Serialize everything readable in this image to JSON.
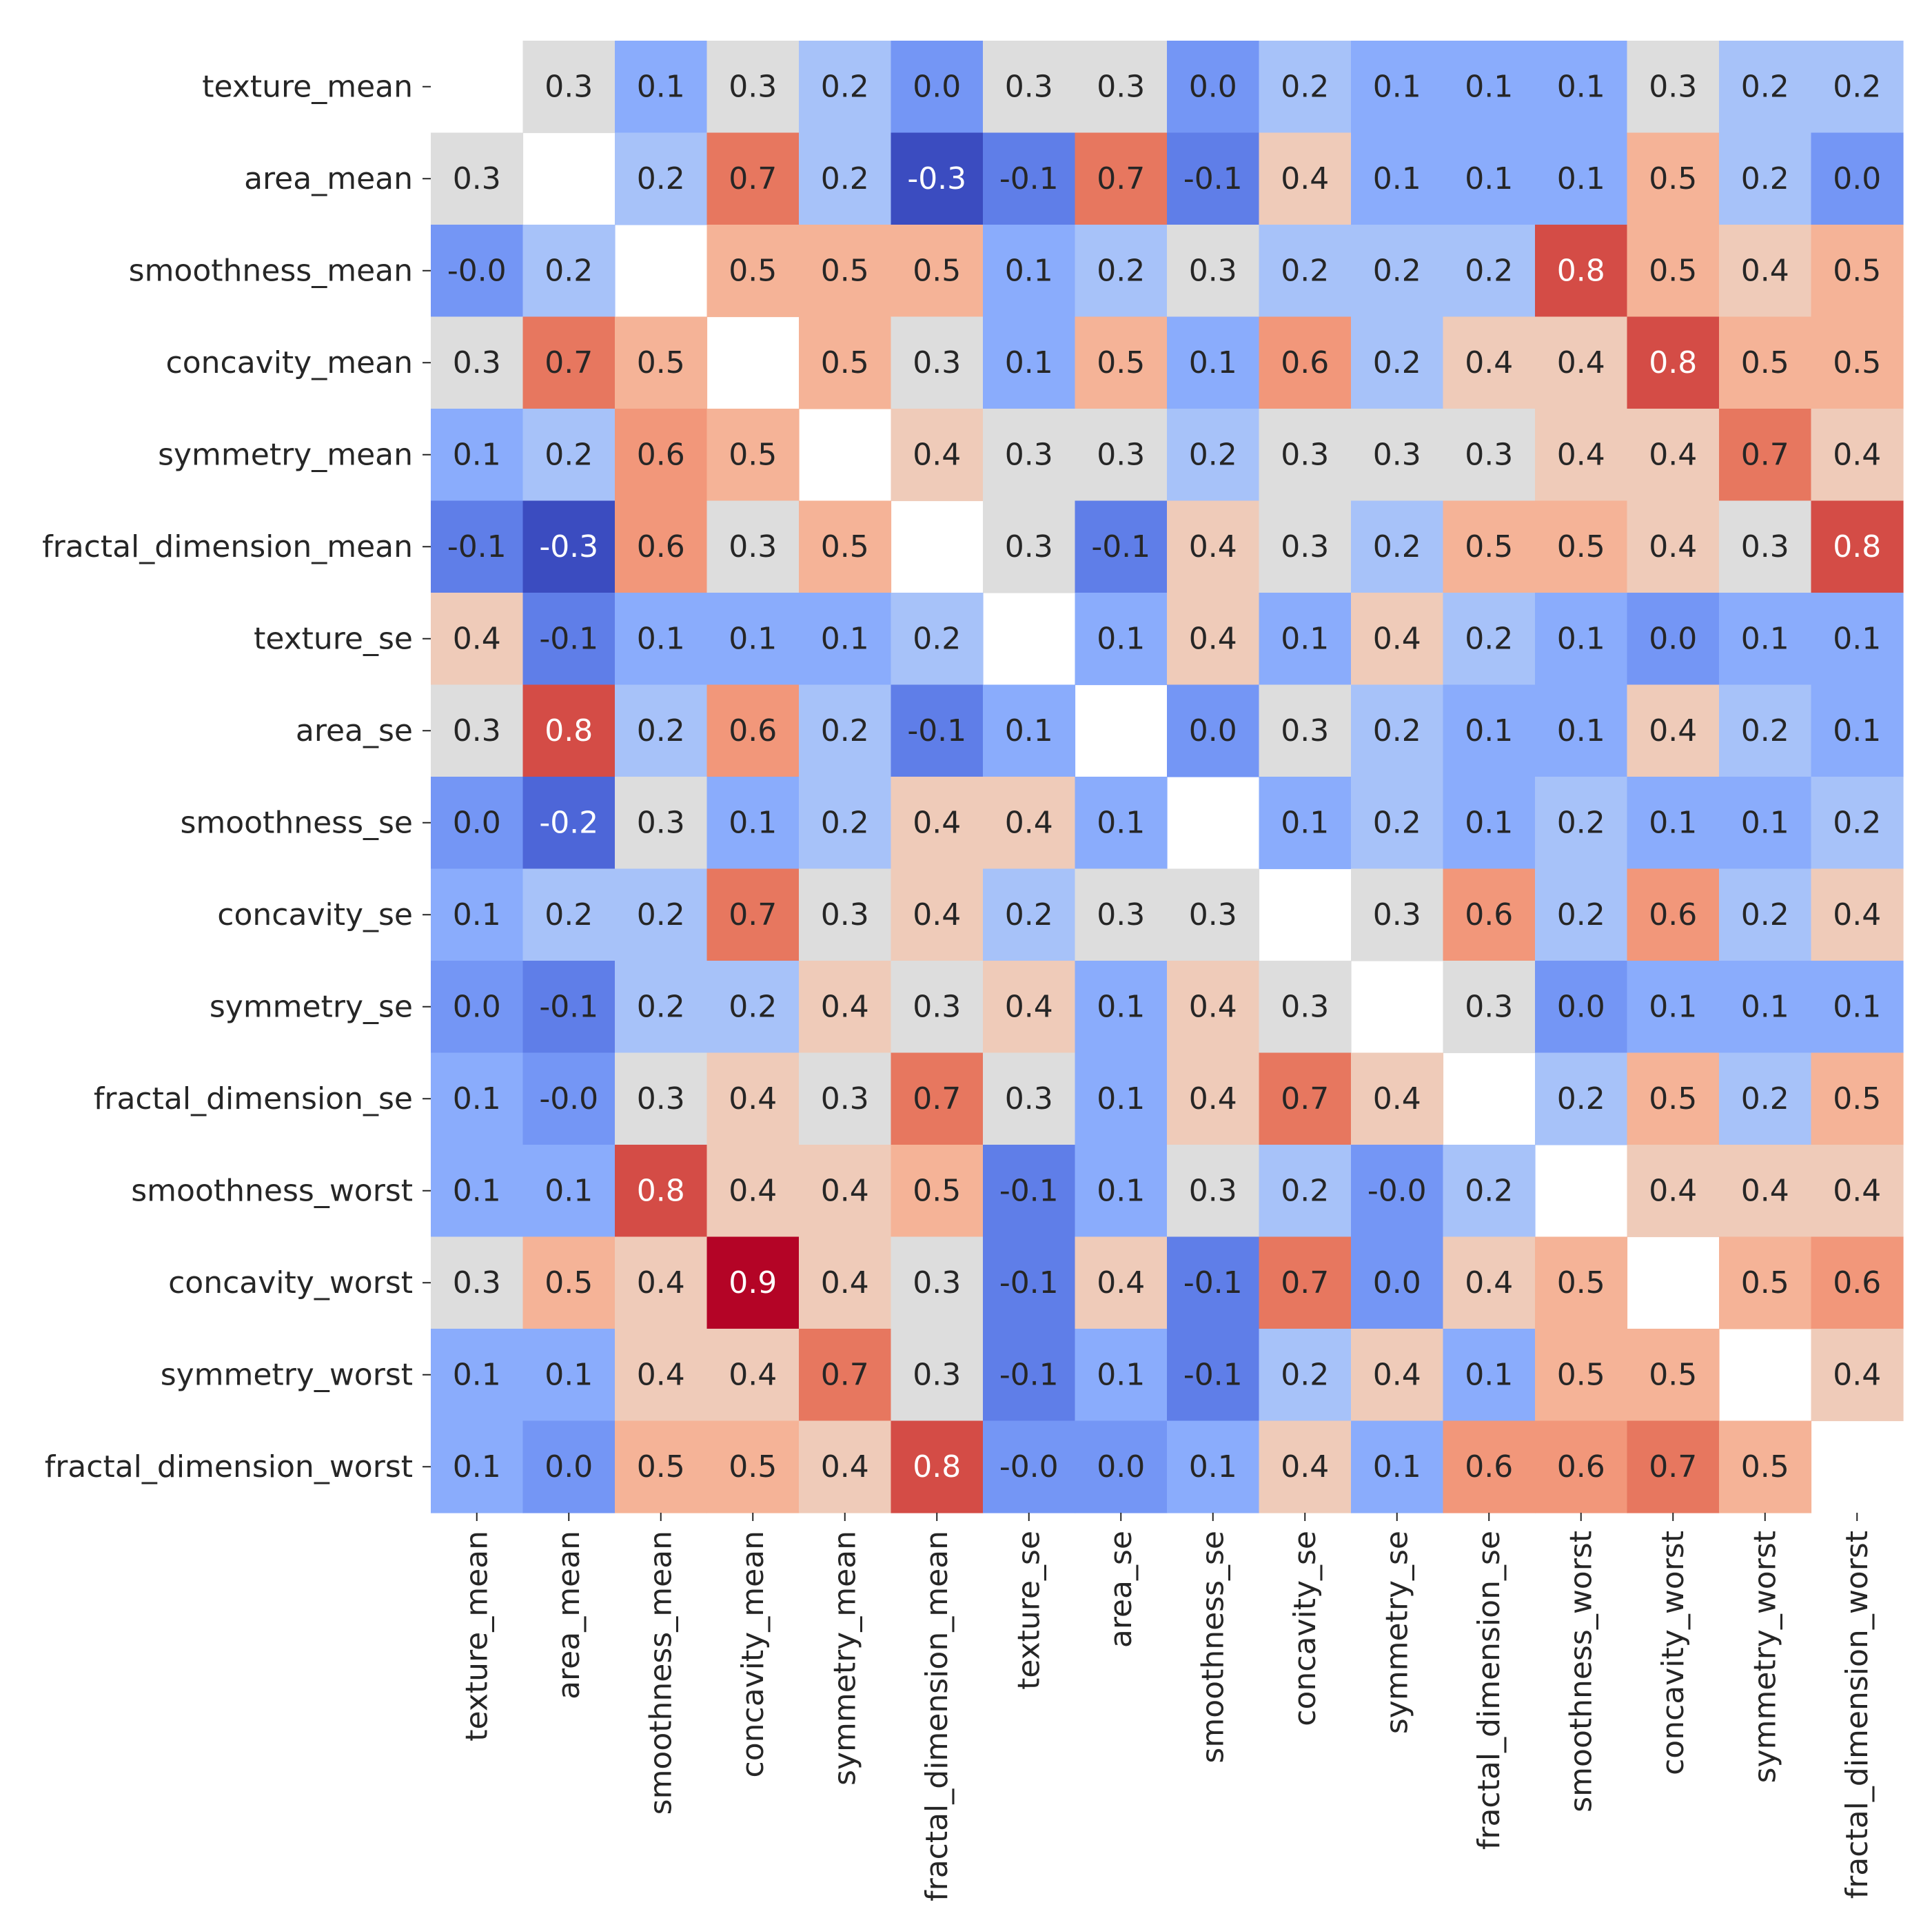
{
  "chart_data": {
    "type": "heatmap",
    "title": "",
    "xlabel": "",
    "ylabel": "",
    "colormap": "coolwarm",
    "vmin": -0.3,
    "vmax": 0.9,
    "diagonal_masked": true,
    "labels": [
      "texture_mean",
      "area_mean",
      "smoothness_mean",
      "concavity_mean",
      "symmetry_mean",
      "fractal_dimension_mean",
      "texture_se",
      "area_se",
      "smoothness_se",
      "concavity_se",
      "symmetry_se",
      "fractal_dimension_se",
      "smoothness_worst",
      "concavity_worst",
      "symmetry_worst",
      "fractal_dimension_worst"
    ],
    "matrix": [
      [
        null,
        0.3,
        0.1,
        0.3,
        0.2,
        0.0,
        0.3,
        0.3,
        0.0,
        0.2,
        0.1,
        0.1,
        0.1,
        0.3,
        0.2,
        0.2
      ],
      [
        0.3,
        null,
        0.2,
        0.7,
        0.2,
        -0.3,
        -0.1,
        0.7,
        -0.1,
        0.4,
        0.1,
        0.1,
        0.1,
        0.5,
        0.2,
        0.0
      ],
      [
        -0.0,
        0.2,
        null,
        0.5,
        0.5,
        0.5,
        0.1,
        0.2,
        0.3,
        0.2,
        0.2,
        0.2,
        0.8,
        0.5,
        0.4,
        0.5
      ],
      [
        0.3,
        0.7,
        0.5,
        null,
        0.5,
        0.3,
        0.1,
        0.5,
        0.1,
        0.6,
        0.2,
        0.4,
        0.4,
        0.8,
        0.5,
        0.5
      ],
      [
        0.1,
        0.2,
        0.6,
        0.5,
        null,
        0.4,
        0.3,
        0.3,
        0.2,
        0.3,
        0.3,
        0.3,
        0.4,
        0.4,
        0.7,
        0.4
      ],
      [
        -0.1,
        -0.3,
        0.6,
        0.3,
        0.5,
        null,
        0.3,
        -0.1,
        0.4,
        0.3,
        0.2,
        0.5,
        0.5,
        0.4,
        0.3,
        0.8
      ],
      [
        0.4,
        -0.1,
        0.1,
        0.1,
        0.1,
        0.2,
        null,
        0.1,
        0.4,
        0.1,
        0.4,
        0.2,
        0.1,
        0.0,
        0.1,
        0.1
      ],
      [
        0.3,
        0.8,
        0.2,
        0.6,
        0.2,
        -0.1,
        0.1,
        null,
        0.0,
        0.3,
        0.2,
        0.1,
        0.1,
        0.4,
        0.2,
        0.1
      ],
      [
        0.0,
        -0.2,
        0.3,
        0.1,
        0.2,
        0.4,
        0.4,
        0.1,
        null,
        0.1,
        0.2,
        0.1,
        0.2,
        0.1,
        0.1,
        0.2
      ],
      [
        0.1,
        0.2,
        0.2,
        0.7,
        0.3,
        0.4,
        0.2,
        0.3,
        0.3,
        null,
        0.3,
        0.6,
        0.2,
        0.6,
        0.2,
        0.4
      ],
      [
        0.0,
        -0.1,
        0.2,
        0.2,
        0.4,
        0.3,
        0.4,
        0.1,
        0.4,
        0.3,
        null,
        0.3,
        0.0,
        0.1,
        0.1,
        0.1
      ],
      [
        0.1,
        -0.0,
        0.3,
        0.4,
        0.3,
        0.7,
        0.3,
        0.1,
        0.4,
        0.7,
        0.4,
        null,
        0.2,
        0.5,
        0.2,
        0.5
      ],
      [
        0.1,
        0.1,
        0.8,
        0.4,
        0.4,
        0.5,
        -0.1,
        0.1,
        0.3,
        0.2,
        -0.0,
        0.2,
        null,
        0.4,
        0.4,
        0.4
      ],
      [
        0.3,
        0.5,
        0.4,
        0.9,
        0.4,
        0.3,
        -0.1,
        0.4,
        -0.1,
        0.7,
        0.0,
        0.4,
        0.5,
        null,
        0.5,
        0.6
      ],
      [
        0.1,
        0.1,
        0.4,
        0.4,
        0.7,
        0.3,
        -0.1,
        0.1,
        -0.1,
        0.2,
        0.4,
        0.1,
        0.5,
        0.5,
        null,
        0.4
      ],
      [
        0.1,
        0.0,
        0.5,
        0.5,
        0.4,
        0.8,
        -0.0,
        0.0,
        0.1,
        0.4,
        0.1,
        0.6,
        0.6,
        0.7,
        0.5,
        null
      ]
    ],
    "cell_labels": [
      [
        "",
        "0.3",
        "0.1",
        "0.3",
        "0.2",
        "0.0",
        "0.3",
        "0.3",
        "0.0",
        "0.2",
        "0.1",
        "0.1",
        "0.1",
        "0.3",
        "0.2",
        "0.2"
      ],
      [
        "0.3",
        "",
        "0.2",
        "0.7",
        "0.2",
        "-0.3",
        "-0.1",
        "0.7",
        "-0.1",
        "0.4",
        "0.1",
        "0.1",
        "0.1",
        "0.5",
        "0.2",
        "0.0"
      ],
      [
        "-0.0",
        "0.2",
        "",
        "0.5",
        "0.5",
        "0.5",
        "0.1",
        "0.2",
        "0.3",
        "0.2",
        "0.2",
        "0.2",
        "0.8",
        "0.5",
        "0.4",
        "0.5"
      ],
      [
        "0.3",
        "0.7",
        "0.5",
        "",
        "0.5",
        "0.3",
        "0.1",
        "0.5",
        "0.1",
        "0.6",
        "0.2",
        "0.4",
        "0.4",
        "0.8",
        "0.5",
        "0.5"
      ],
      [
        "0.1",
        "0.2",
        "0.6",
        "0.5",
        "",
        "0.4",
        "0.3",
        "0.3",
        "0.2",
        "0.3",
        "0.3",
        "0.3",
        "0.4",
        "0.4",
        "0.7",
        "0.4"
      ],
      [
        "-0.1",
        "-0.3",
        "0.6",
        "0.3",
        "0.5",
        "",
        "0.3",
        "-0.1",
        "0.4",
        "0.3",
        "0.2",
        "0.5",
        "0.5",
        "0.4",
        "0.3",
        "0.8"
      ],
      [
        "0.4",
        "-0.1",
        "0.1",
        "0.1",
        "0.1",
        "0.2",
        "",
        "0.1",
        "0.4",
        "0.1",
        "0.4",
        "0.2",
        "0.1",
        "0.0",
        "0.1",
        "0.1"
      ],
      [
        "0.3",
        "0.8",
        "0.2",
        "0.6",
        "0.2",
        "-0.1",
        "0.1",
        "",
        "0.0",
        "0.3",
        "0.2",
        "0.1",
        "0.1",
        "0.4",
        "0.2",
        "0.1"
      ],
      [
        "0.0",
        "-0.2",
        "0.3",
        "0.1",
        "0.2",
        "0.4",
        "0.4",
        "0.1",
        "",
        "0.1",
        "0.2",
        "0.1",
        "0.2",
        "0.1",
        "0.1",
        "0.2"
      ],
      [
        "0.1",
        "0.2",
        "0.2",
        "0.7",
        "0.3",
        "0.4",
        "0.2",
        "0.3",
        "0.3",
        "",
        "0.3",
        "0.6",
        "0.2",
        "0.6",
        "0.2",
        "0.4"
      ],
      [
        "0.0",
        "-0.1",
        "0.2",
        "0.2",
        "0.4",
        "0.3",
        "0.4",
        "0.1",
        "0.4",
        "0.3",
        "",
        "0.3",
        "0.0",
        "0.1",
        "0.1",
        "0.1"
      ],
      [
        "0.1",
        "-0.0",
        "0.3",
        "0.4",
        "0.3",
        "0.7",
        "0.3",
        "0.1",
        "0.4",
        "0.7",
        "0.4",
        "",
        "0.2",
        "0.5",
        "0.2",
        "0.5"
      ],
      [
        "0.1",
        "0.1",
        "0.8",
        "0.4",
        "0.4",
        "0.5",
        "-0.1",
        "0.1",
        "0.3",
        "0.2",
        "-0.0",
        "0.2",
        "",
        "0.4",
        "0.4",
        "0.4"
      ],
      [
        "0.3",
        "0.5",
        "0.4",
        "0.9",
        "0.4",
        "0.3",
        "-0.1",
        "0.4",
        "-0.1",
        "0.7",
        "0.0",
        "0.4",
        "0.5",
        "",
        "0.5",
        "0.6"
      ],
      [
        "0.1",
        "0.1",
        "0.4",
        "0.4",
        "0.7",
        "0.3",
        "-0.1",
        "0.1",
        "-0.1",
        "0.2",
        "0.4",
        "0.1",
        "0.5",
        "0.5",
        "",
        "0.4"
      ],
      [
        "0.1",
        "0.0",
        "0.5",
        "0.5",
        "0.4",
        "0.8",
        "-0.0",
        "0.0",
        "0.1",
        "0.4",
        "0.1",
        "0.6",
        "0.6",
        "0.7",
        "0.5",
        ""
      ]
    ],
    "legend": "none",
    "grid": false
  }
}
